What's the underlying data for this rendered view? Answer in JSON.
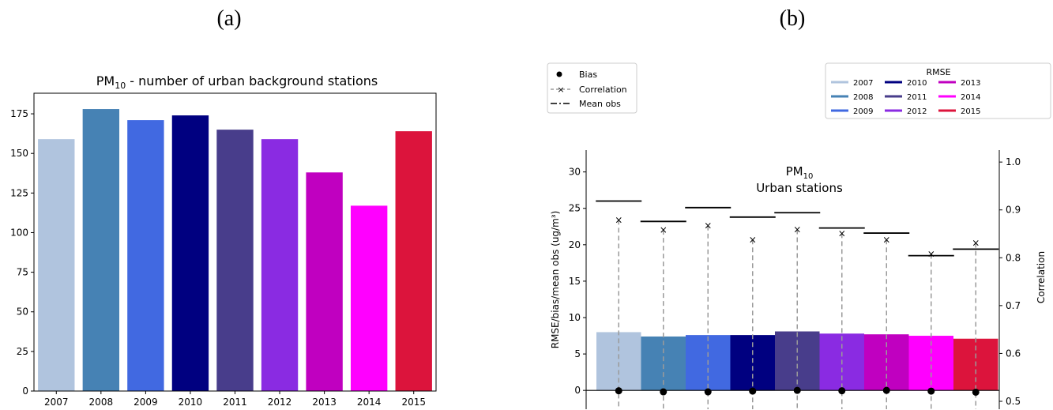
{
  "panel_a": {
    "label": "(a)",
    "chart_data": {
      "type": "bar",
      "title_main": "PM",
      "title_sub": "10",
      "title_rest": " - number of urban background stations",
      "categories": [
        "2007",
        "2008",
        "2009",
        "2010",
        "2011",
        "2012",
        "2013",
        "2014",
        "2015"
      ],
      "values": [
        159,
        178,
        171,
        174,
        165,
        159,
        138,
        117,
        164
      ],
      "colors": [
        "#b0c4de",
        "#4682b4",
        "#4169e1",
        "#000080",
        "#483d8b",
        "#8a2be2",
        "#c000c0",
        "#ff00ff",
        "#dc143c"
      ],
      "ylim": [
        0,
        188
      ],
      "yticks": [
        0,
        25,
        50,
        75,
        100,
        125,
        150,
        175
      ],
      "xlabel": "",
      "ylabel": ""
    }
  },
  "panel_b": {
    "label": "(b)",
    "legend_markers": {
      "bias_label": "Bias",
      "correlation_label": "Correlation",
      "meanobs_label": "Mean obs"
    },
    "legend_rmse": {
      "title": "RMSE",
      "entries": [
        {
          "year": "2007",
          "color": "#b0c4de"
        },
        {
          "year": "2008",
          "color": "#4682b4"
        },
        {
          "year": "2009",
          "color": "#4169e1"
        },
        {
          "year": "2010",
          "color": "#000080"
        },
        {
          "year": "2011",
          "color": "#483d8b"
        },
        {
          "year": "2012",
          "color": "#8a2be2"
        },
        {
          "year": "2013",
          "color": "#c000c0"
        },
        {
          "year": "2014",
          "color": "#ff00ff"
        },
        {
          "year": "2015",
          "color": "#dc143c"
        }
      ]
    },
    "chart_data": {
      "type": "bar",
      "title_main": "PM",
      "title_sub": "10",
      "title_line2": "Urban stations",
      "ylabel": "RMSE/bias/mean obs (ug/m³)",
      "y2label": "Correlation",
      "categories": [
        "2007",
        "2008",
        "2009",
        "2010",
        "2011",
        "2012",
        "2013",
        "2014",
        "2015"
      ],
      "series": [
        {
          "name": "RMSE",
          "values": [
            8.0,
            7.4,
            7.6,
            7.6,
            8.1,
            7.8,
            7.7,
            7.5,
            7.1
          ]
        },
        {
          "name": "Bias",
          "values": [
            -0.05,
            -0.2,
            -0.2,
            -0.1,
            0.0,
            -0.05,
            0.0,
            -0.1,
            -0.25
          ]
        },
        {
          "name": "Mean obs",
          "values": [
            26.0,
            23.2,
            25.1,
            23.8,
            24.4,
            22.3,
            21.6,
            18.5,
            19.4
          ]
        },
        {
          "name": "Correlation",
          "values": [
            0.879,
            0.858,
            0.867,
            0.838,
            0.859,
            0.851,
            0.838,
            0.808,
            0.831
          ]
        }
      ],
      "colors": [
        "#b0c4de",
        "#4682b4",
        "#4169e1",
        "#000080",
        "#483d8b",
        "#8a2be2",
        "#c000c0",
        "#ff00ff",
        "#dc143c"
      ],
      "ylim": [
        -1.5,
        33
      ],
      "yticks": [
        0,
        5,
        10,
        15,
        20,
        25,
        30
      ],
      "y2lim": [
        0.5,
        1.025
      ],
      "y2ticks": [
        0.5,
        0.6,
        0.7,
        0.8,
        0.9,
        1.0
      ],
      "y2ticklabels": [
        "0.5",
        "0.6",
        "0.7",
        "0.8",
        "0.9",
        "1.0"
      ]
    }
  }
}
